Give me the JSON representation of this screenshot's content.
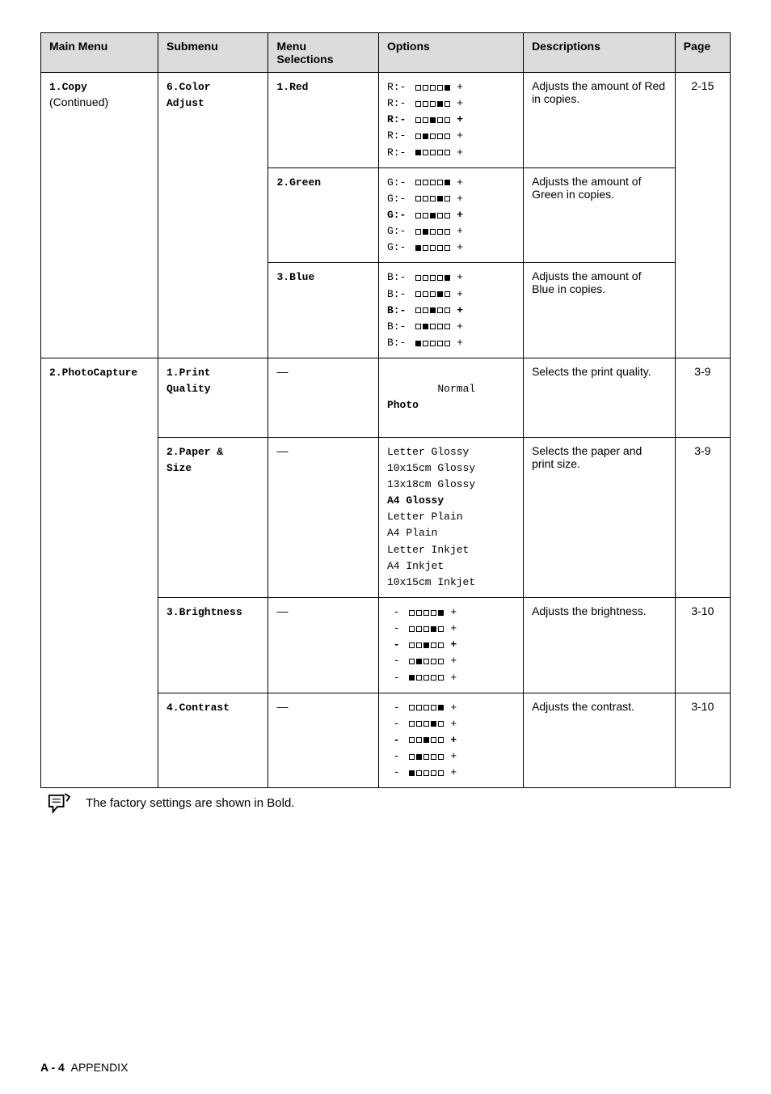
{
  "headers": {
    "main_menu": "Main Menu",
    "submenu": "Submenu",
    "menu_selections": "Menu\nSelections",
    "options": "Options",
    "descriptions": "Descriptions",
    "page": "Page"
  },
  "rows": {
    "copy": {
      "main_menu": "1.Copy",
      "main_menu_sub": "(Continued)",
      "submenu_label": "6.Color\nAdjust",
      "red": {
        "label": "1.Red",
        "prefix": "R:",
        "desc": "Adjusts the amount of Red in copies.",
        "page": "2-15"
      },
      "green": {
        "label": "2.Green",
        "prefix": "G:",
        "desc": "Adjusts the amount of Green in copies."
      },
      "blue": {
        "label": "3.Blue",
        "prefix": "B:",
        "desc": "Adjusts the amount of Blue in copies."
      }
    },
    "photo": {
      "main_menu": "2.PhotoCapture",
      "print_quality": {
        "submenu": "1.Print\nQuality",
        "selection": "—",
        "options_line1": "Normal",
        "options_line2": "Photo",
        "desc": "Selects the print quality.",
        "page": "3-9"
      },
      "paper_size": {
        "submenu": "2.Paper &\nSize",
        "selection": "—",
        "options": "Letter Glossy\n10x15cm Glossy\n13x18cm Glossy\nA4 Glossy\nLetter Plain\nA4 Plain\nLetter Inkjet\nA4 Inkjet\n10x15cm Inkjet",
        "options_bold_index": 3,
        "desc": "Selects the paper and print size.",
        "page": "3-9"
      },
      "brightness": {
        "submenu": "3.Brightness",
        "selection": "—",
        "desc": "Adjusts the brightness.",
        "page": "3-10"
      },
      "contrast": {
        "submenu": "4.Contrast",
        "selection": "—",
        "desc": "Adjusts the contrast.",
        "page": "3-10"
      }
    }
  },
  "scale_patterns": [
    [
      0,
      0,
      0,
      0,
      1
    ],
    [
      0,
      0,
      0,
      1,
      0
    ],
    [
      0,
      0,
      1,
      0,
      0
    ],
    [
      0,
      1,
      0,
      0,
      0
    ],
    [
      1,
      0,
      0,
      0,
      0
    ]
  ],
  "scale_bold_index": 2,
  "note_text": "The factory settings are shown in Bold.",
  "footer": {
    "label": "A - 4",
    "section": "APPENDIX"
  }
}
